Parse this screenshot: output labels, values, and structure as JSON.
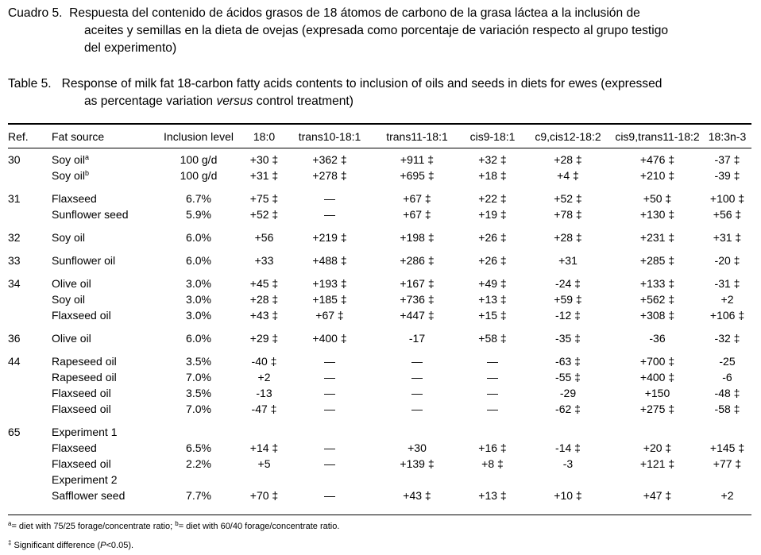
{
  "caption_es": {
    "label": "Cuadro 5.",
    "line1": "Respuesta del contenido de ácidos grasos de 18 átomos de carbono de la grasa láctea a la inclusión de",
    "line2": "aceites y semillas en la dieta de ovejas (expresada como porcentaje de variación respecto al grupo testigo",
    "line3": "del experimento)"
  },
  "caption_en": {
    "label": "Table 5.",
    "line1": "Response of milk fat 18-carbon fatty acids contents to inclusion of oils and seeds in diets for ewes (expressed",
    "line2_pre": "as percentage variation",
    "line2_em": "versus",
    "line2_post": "control treatment)"
  },
  "table": {
    "columns": [
      "Ref.",
      "Fat source",
      "Inclusion level",
      "18:0",
      "trans10-18:1",
      "trans11-18:1",
      "cis9-18:1",
      "c9,cis12-18:2",
      "cis9,trans11-18:2",
      "18:3n-3"
    ],
    "sig_mark": "‡",
    "groups": [
      {
        "ref": "30",
        "rows": [
          {
            "source": "Soy oil",
            "sup": "a",
            "inclusion": "100 g/d",
            "values": [
              "+30 ‡",
              "+362 ‡",
              "+911 ‡",
              "+32 ‡",
              "+28 ‡",
              "+476 ‡",
              "-37 ‡"
            ]
          },
          {
            "source": "Soy oil",
            "sup": "b",
            "inclusion": "100 g/d",
            "values": [
              "+31 ‡",
              "+278 ‡",
              "+695 ‡",
              "+18 ‡",
              "+4 ‡",
              "+210 ‡",
              "-39 ‡"
            ]
          }
        ]
      },
      {
        "ref": "31",
        "rows": [
          {
            "source": "Flaxseed",
            "inclusion": "6.7%",
            "values": [
              "+75 ‡",
              "—",
              "+67 ‡",
              "+22 ‡",
              "+52 ‡",
              "+50 ‡",
              "+100 ‡"
            ]
          },
          {
            "source": "Sunflower seed",
            "inclusion": "5.9%",
            "values": [
              "+52 ‡",
              "—",
              "+67 ‡",
              "+19 ‡",
              "+78 ‡",
              "+130 ‡",
              "+56 ‡"
            ]
          }
        ]
      },
      {
        "ref": "32",
        "rows": [
          {
            "source": "Soy oil",
            "inclusion": "6.0%",
            "values": [
              "+56",
              "+219 ‡",
              "+198 ‡",
              "+26 ‡",
              "+28 ‡",
              "+231 ‡",
              "+31 ‡"
            ]
          }
        ]
      },
      {
        "ref": "33",
        "rows": [
          {
            "source": "Sunflower oil",
            "inclusion": "6.0%",
            "values": [
              "+33",
              "+488 ‡",
              "+286 ‡",
              "+26 ‡",
              "+31",
              "+285 ‡",
              "-20 ‡"
            ]
          }
        ]
      },
      {
        "ref": "34",
        "rows": [
          {
            "source": "Olive oil",
            "inclusion": "3.0%",
            "values": [
              "+45 ‡",
              "+193 ‡",
              "+167 ‡",
              "+49 ‡",
              "-24 ‡",
              "+133 ‡",
              "-31 ‡"
            ]
          },
          {
            "source": "Soy oil",
            "inclusion": "3.0%",
            "values": [
              "+28 ‡",
              "+185 ‡",
              "+736 ‡",
              "+13 ‡",
              "+59 ‡",
              "+562 ‡",
              "+2"
            ]
          },
          {
            "source": "Flaxseed oil",
            "inclusion": "3.0%",
            "values": [
              "+43 ‡",
              "+67 ‡",
              "+447 ‡",
              "+15 ‡",
              "-12 ‡",
              "+308 ‡",
              "+106 ‡"
            ]
          }
        ]
      },
      {
        "ref": "36",
        "rows": [
          {
            "source": "Olive oil",
            "inclusion": "6.0%",
            "values": [
              "+29 ‡",
              "+400 ‡",
              "-17",
              "+58 ‡",
              "-35 ‡",
              "-36",
              "-32 ‡"
            ]
          }
        ]
      },
      {
        "ref": "44",
        "rows": [
          {
            "source": "Rapeseed oil",
            "inclusion": "3.5%",
            "values": [
              "-40 ‡",
              "—",
              "—",
              "—",
              "-63 ‡",
              "+700 ‡",
              "-25"
            ]
          },
          {
            "source": "Rapeseed oil",
            "inclusion": "7.0%",
            "values": [
              "+2",
              "—",
              "—",
              "—",
              "-55 ‡",
              "+400 ‡",
              "-6"
            ]
          },
          {
            "source": "Flaxseed oil",
            "inclusion": "3.5%",
            "values": [
              "-13",
              "—",
              "—",
              "—",
              "-29",
              "+150",
              "-48 ‡"
            ]
          },
          {
            "source": "Flaxseed oil",
            "inclusion": "7.0%",
            "values": [
              "-47 ‡",
              "—",
              "—",
              "—",
              "-62 ‡",
              "+275 ‡",
              "-58 ‡"
            ]
          }
        ]
      },
      {
        "ref": "65",
        "rows": [
          {
            "source": "Experiment 1",
            "inclusion": "",
            "values": [
              "",
              "",
              "",
              "",
              "",
              "",
              ""
            ]
          },
          {
            "source": "Flaxseed",
            "inclusion": "6.5%",
            "values": [
              "+14 ‡",
              "—",
              "+30",
              "+16 ‡",
              "-14 ‡",
              "+20 ‡",
              "+145 ‡"
            ]
          },
          {
            "source": "Flaxseed oil",
            "inclusion": "2.2%",
            "values": [
              "+5",
              "—",
              "+139 ‡",
              "+8 ‡",
              "-3",
              "+121 ‡",
              "+77 ‡"
            ]
          },
          {
            "source": "Experiment 2",
            "inclusion": "",
            "values": [
              "",
              "",
              "",
              "",
              "",
              "",
              ""
            ]
          },
          {
            "source": "Safflower seed",
            "inclusion": "7.7%",
            "values": [
              "+70 ‡",
              "—",
              "+43 ‡",
              "+13 ‡",
              "+10 ‡",
              "+47 ‡",
              "+2"
            ]
          }
        ]
      }
    ]
  },
  "footnotes": {
    "a_mark": "a",
    "a_text": "= diet with 75/25 forage/concentrate ratio;",
    "b_mark": "b",
    "b_text": "= diet with 60/40 forage/concentrate ratio.",
    "sig_mark": "‡",
    "sig_text_pre": "Significant difference (",
    "sig_text_p": "P",
    "sig_text_post": "<0.05)."
  }
}
